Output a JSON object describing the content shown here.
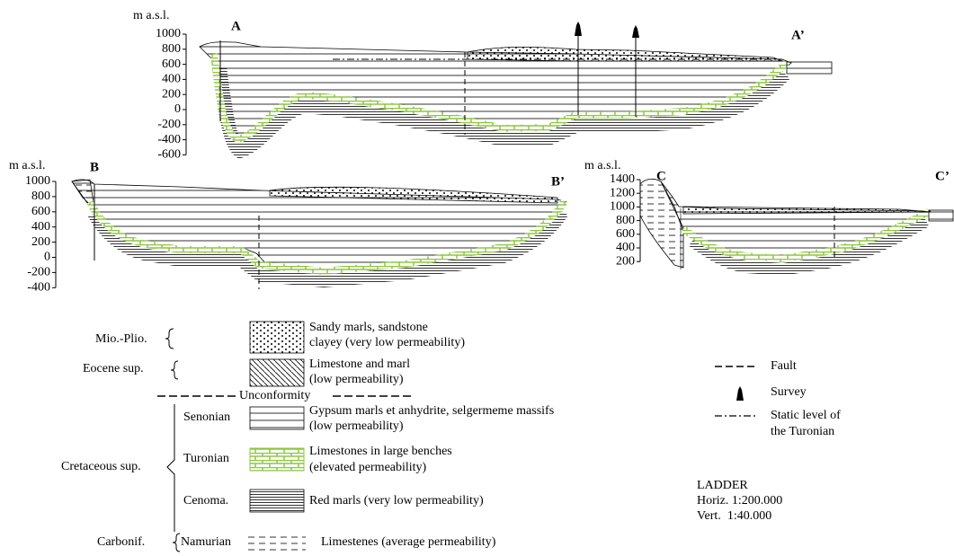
{
  "sections": [
    {
      "unit": "m a.s.l.",
      "start": "A",
      "end": "A’",
      "ticks": [
        1000,
        800,
        600,
        400,
        200,
        0,
        -200,
        -400,
        -600
      ]
    },
    {
      "unit": "m a.s.l.",
      "start": "B",
      "end": "B’",
      "ticks": [
        1000,
        800,
        600,
        400,
        200,
        0,
        -200,
        -400
      ]
    },
    {
      "unit": "m a.s.l.",
      "start": "C",
      "end": "C’",
      "ticks": [
        1400,
        1200,
        1000,
        800,
        600,
        400,
        200
      ]
    }
  ],
  "legend": {
    "units": [
      {
        "age": "Mio.-Plio.",
        "description": [
          "Sandy marls, sandstone",
          "clayey (very low permeability)"
        ]
      },
      {
        "age": "Eocene sup.",
        "description": [
          "Limestone and marl",
          "(low permeability)"
        ]
      }
    ],
    "unconformity": "Unconformity",
    "cretaceous": {
      "age": "Cretaceous sup.",
      "stages": [
        {
          "stage": "Senonian",
          "description": [
            "Gypsum marls et anhydrite, selgermeme massifs",
            "(low permeability)"
          ]
        },
        {
          "stage": "Turonian",
          "description": [
            "Limestones in large benches",
            "(elevated permeability)"
          ]
        },
        {
          "stage": "Cenoma.",
          "description": [
            "Red marls (very low permeability)"
          ]
        }
      ]
    },
    "carboniferous": {
      "age": "Carbonif.",
      "stage": "Namurian",
      "description": [
        "Limestenes (average permeability)"
      ]
    },
    "symbols": {
      "fault": "Fault",
      "survey": "Survey",
      "static_level": [
        "Static level of",
        "the Turonian"
      ]
    },
    "scale": {
      "title": "LADDER",
      "horizontal": "Horiz. 1:200.000",
      "vertical": "Vert.  1:40.000"
    }
  }
}
